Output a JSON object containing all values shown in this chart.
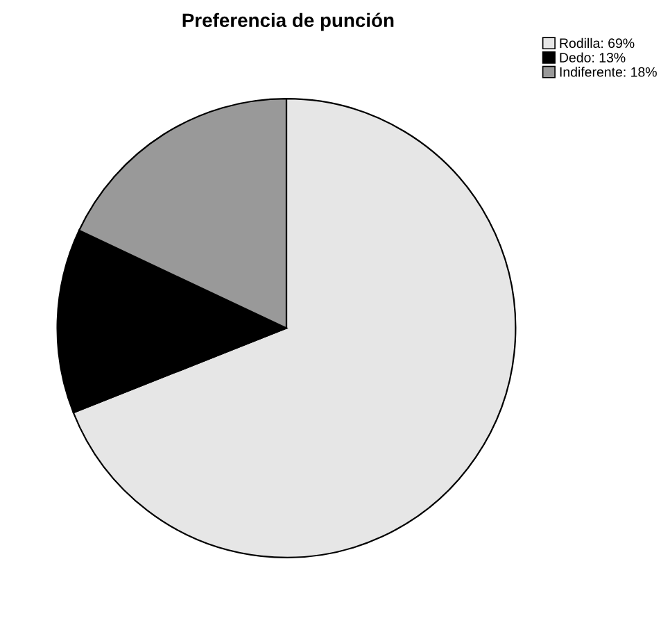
{
  "chart_data": {
    "type": "pie",
    "title": "Preferencia de punción",
    "categories": [
      "Rodilla: 69%",
      "Dedo: 13%",
      "Indiferente: 18%"
    ],
    "values": [
      69,
      13,
      18
    ],
    "colors": [
      "#e6e6e6",
      "#000000",
      "#999999"
    ],
    "legend": "top right"
  }
}
